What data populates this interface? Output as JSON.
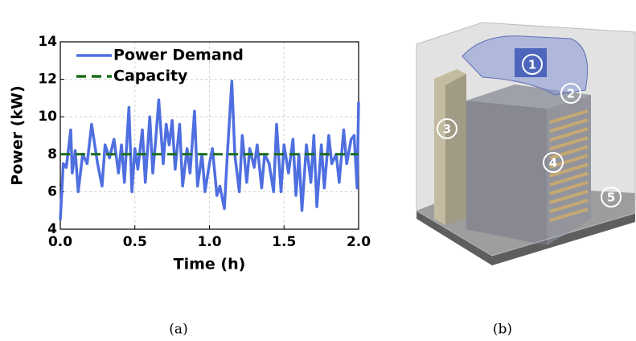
{
  "chart_data": {
    "type": "line",
    "xlabel": "Time (h)",
    "ylabel": "Power (kW)",
    "xlim": [
      0,
      2
    ],
    "ylim": [
      4,
      14
    ],
    "xticks": [
      {
        "value": 0,
        "label": "0.0"
      },
      {
        "value": 0.5,
        "label": "0.5"
      },
      {
        "value": 1,
        "label": "1.0"
      },
      {
        "value": 1.5,
        "label": "1.5"
      },
      {
        "value": 2,
        "label": "2.0"
      }
    ],
    "yticks": [
      4,
      6,
      8,
      10,
      12,
      14
    ],
    "grid": true,
    "legend": "upper left",
    "series": [
      {
        "name": "Power Demand",
        "color": "#4f6fe0",
        "dash": false,
        "x": [
          0,
          0.02,
          0.04,
          0.07,
          0.08,
          0.1,
          0.12,
          0.15,
          0.18,
          0.21,
          0.25,
          0.28,
          0.3,
          0.33,
          0.36,
          0.39,
          0.41,
          0.43,
          0.46,
          0.48,
          0.5,
          0.52,
          0.55,
          0.57,
          0.6,
          0.62,
          0.64,
          0.66,
          0.69,
          0.71,
          0.73,
          0.75,
          0.77,
          0.8,
          0.82,
          0.85,
          0.87,
          0.9,
          0.92,
          0.95,
          0.97,
          1.0,
          1.02,
          1.05,
          1.07,
          1.1,
          1.12,
          1.15,
          1.17,
          1.2,
          1.22,
          1.25,
          1.27,
          1.3,
          1.32,
          1.35,
          1.37,
          1.4,
          1.43,
          1.45,
          1.48,
          1.5,
          1.53,
          1.56,
          1.58,
          1.6,
          1.62,
          1.65,
          1.68,
          1.7,
          1.72,
          1.75,
          1.77,
          1.8,
          1.82,
          1.85,
          1.87,
          1.9,
          1.92,
          1.95,
          1.97,
          1.99,
          2.0
        ],
        "values": [
          4.5,
          7.5,
          7.3,
          9.3,
          7.0,
          8.2,
          6.0,
          8.0,
          7.5,
          9.6,
          7.5,
          6.3,
          8.5,
          7.8,
          8.8,
          7.0,
          8.5,
          6.5,
          10.5,
          6.0,
          8.3,
          7.2,
          9.3,
          6.5,
          10.0,
          7.0,
          8.8,
          10.9,
          7.5,
          9.6,
          8.5,
          9.8,
          7.2,
          9.6,
          6.3,
          8.3,
          7.0,
          10.3,
          6.3,
          8.0,
          6.0,
          7.5,
          8.3,
          5.8,
          6.3,
          5.1,
          8.0,
          11.9,
          8.0,
          6.0,
          9.0,
          6.5,
          8.3,
          7.3,
          8.5,
          6.2,
          8.0,
          7.5,
          6.0,
          9.6,
          6.0,
          8.5,
          7.0,
          8.8,
          5.8,
          8.0,
          5.0,
          8.5,
          6.5,
          9.0,
          5.2,
          8.5,
          6.2,
          9.0,
          7.5,
          8.0,
          6.5,
          9.3,
          7.5,
          8.8,
          9.0,
          6.2,
          10.8
        ]
      },
      {
        "name": "Capacity",
        "color": "#1a6e1a",
        "dash": true,
        "x": [
          0,
          2
        ],
        "values": [
          8,
          8
        ]
      }
    ]
  },
  "captions": [
    "(a)",
    "(b)"
  ],
  "diagram_labels": [
    "1",
    "2",
    "3",
    "4",
    "5"
  ]
}
